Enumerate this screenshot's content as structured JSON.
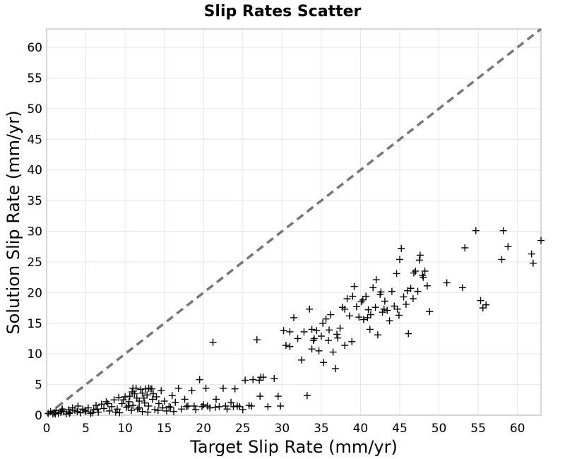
{
  "chart_data": {
    "type": "scatter",
    "title": "Slip Rates Scatter",
    "xlabel": "Target Slip Rate (mm/yr)",
    "ylabel": "Solution Slip Rate (mm/yr)",
    "xlim": [
      0,
      63
    ],
    "ylim": [
      0,
      63
    ],
    "xticks": [
      0,
      5,
      10,
      15,
      20,
      25,
      30,
      35,
      40,
      45,
      50,
      55,
      60
    ],
    "yticks": [
      0,
      5,
      10,
      15,
      20,
      25,
      30,
      35,
      40,
      45,
      50,
      55,
      60
    ],
    "tick_labels_x": [
      "0",
      "5",
      "10",
      "15",
      "20",
      "25",
      "30",
      "35",
      "40",
      "45",
      "50",
      "55",
      "60"
    ],
    "tick_labels_y": [
      "0",
      "5",
      "10",
      "15",
      "20",
      "25",
      "30",
      "35",
      "40",
      "45",
      "50",
      "55",
      "60"
    ],
    "grid": true,
    "marker": "plus",
    "marker_color": "#000000",
    "reference_line": {
      "style": "dashed",
      "color": "#777777",
      "from": [
        0,
        0
      ],
      "to": [
        63,
        63
      ]
    },
    "series": [
      {
        "points": [
          [
            0.2,
            0.3
          ],
          [
            0.5,
            0.6
          ],
          [
            0.8,
            0.2
          ],
          [
            1.0,
            0.4
          ],
          [
            1.2,
            0.8
          ],
          [
            1.5,
            0.3
          ],
          [
            1.8,
            0.5
          ],
          [
            2.0,
            1.0
          ],
          [
            2.2,
            0.6
          ],
          [
            2.5,
            0.2
          ],
          [
            2.8,
            0.9
          ],
          [
            3.0,
            0.5
          ],
          [
            3.3,
            1.2
          ],
          [
            3.6,
            0.8
          ],
          [
            4.0,
            1.5
          ],
          [
            4.3,
            0.4
          ],
          [
            4.6,
            1.0
          ],
          [
            5.0,
            0.6
          ],
          [
            5.3,
            1.2
          ],
          [
            5.6,
            0.3
          ],
          [
            6.0,
            0.9
          ],
          [
            6.3,
            1.6
          ],
          [
            6.6,
            0.5
          ],
          [
            7.0,
            1.8
          ],
          [
            7.3,
            1.1
          ],
          [
            7.6,
            2.2
          ],
          [
            8.0,
            0.7
          ],
          [
            8.3,
            1.4
          ],
          [
            8.6,
            2.5
          ],
          [
            9.0,
            1.0
          ],
          [
            9.3,
            0.4
          ],
          [
            9.6,
            1.9
          ],
          [
            10.0,
            3.0
          ],
          [
            10.2,
            1.3
          ],
          [
            10.5,
            2.2
          ],
          [
            10.8,
            0.8
          ],
          [
            11.0,
            1.6
          ],
          [
            11.2,
            3.5
          ],
          [
            11.5,
            2.8
          ],
          [
            11.8,
            1.2
          ],
          [
            12.0,
            4.2
          ],
          [
            12.2,
            0.6
          ],
          [
            12.5,
            2.0
          ],
          [
            12.8,
            3.3
          ],
          [
            13.0,
            1.5
          ],
          [
            13.2,
            4.3
          ],
          [
            13.5,
            2.6
          ],
          [
            13.8,
            0.9
          ],
          [
            14.0,
            3.0
          ],
          [
            14.3,
            1.9
          ],
          [
            14.6,
            4.0
          ],
          [
            15.0,
            2.3
          ],
          [
            15.3,
            0.7
          ],
          [
            15.6,
            1.4
          ],
          [
            16.0,
            3.2
          ],
          [
            16.4,
            2.1
          ],
          [
            16.8,
            4.4
          ],
          [
            17.2,
            1.0
          ],
          [
            17.6,
            2.6
          ],
          [
            18.0,
            1.5
          ],
          [
            18.5,
            4.0
          ],
          [
            19.0,
            0.9
          ],
          [
            19.5,
            5.8
          ],
          [
            20.0,
            1.7
          ],
          [
            20.3,
            4.4
          ],
          [
            20.8,
            1.2
          ],
          [
            21.2,
            11.9
          ],
          [
            21.6,
            2.6
          ],
          [
            22.0,
            1.4
          ],
          [
            22.5,
            4.4
          ],
          [
            23.0,
            1.0
          ],
          [
            23.5,
            2.1
          ],
          [
            24.0,
            4.3
          ],
          [
            24.3,
            1.5
          ],
          [
            25.0,
            0.9
          ],
          [
            25.3,
            5.7
          ],
          [
            25.8,
            1.6
          ],
          [
            26.3,
            5.8
          ],
          [
            26.8,
            12.3
          ],
          [
            27.2,
            3.1
          ],
          [
            27.6,
            6.2
          ],
          [
            28.2,
            1.4
          ],
          [
            29.0,
            6.0
          ],
          [
            29.5,
            3.1
          ],
          [
            29.8,
            1.5
          ],
          [
            30.2,
            13.8
          ],
          [
            30.5,
            11.4
          ],
          [
            31.0,
            11.2
          ],
          [
            31.5,
            15.9
          ],
          [
            32.0,
            12.5
          ],
          [
            32.5,
            9.0
          ],
          [
            32.8,
            13.6
          ],
          [
            33.2,
            3.2
          ],
          [
            33.5,
            17.3
          ],
          [
            33.8,
            14.0
          ],
          [
            34.1,
            12.5
          ],
          [
            34.4,
            13.8
          ],
          [
            34.7,
            10.5
          ],
          [
            35.0,
            12.9
          ],
          [
            35.3,
            8.6
          ],
          [
            35.6,
            15.7
          ],
          [
            35.9,
            12.2
          ],
          [
            36.2,
            16.4
          ],
          [
            36.5,
            10.3
          ],
          [
            36.8,
            7.6
          ],
          [
            37.1,
            12.6
          ],
          [
            37.4,
            14.2
          ],
          [
            37.7,
            17.6
          ],
          [
            38.0,
            11.4
          ],
          [
            38.3,
            19.0
          ],
          [
            38.6,
            16.2
          ],
          [
            38.9,
            12.0
          ],
          [
            39.2,
            21.0
          ],
          [
            39.5,
            17.7
          ],
          [
            39.8,
            16.0
          ],
          [
            40.1,
            18.5
          ],
          [
            40.4,
            15.6
          ],
          [
            40.7,
            19.4
          ],
          [
            41.0,
            17.2
          ],
          [
            41.3,
            16.4
          ],
          [
            41.6,
            20.8
          ],
          [
            41.9,
            17.6
          ],
          [
            42.2,
            13.1
          ],
          [
            42.5,
            19.7
          ],
          [
            42.8,
            16.8
          ],
          [
            43.1,
            18.6
          ],
          [
            43.4,
            17.1
          ],
          [
            43.7,
            15.4
          ],
          [
            44.0,
            20.2
          ],
          [
            44.3,
            17.8
          ],
          [
            44.6,
            23.1
          ],
          [
            44.9,
            16.3
          ],
          [
            45.2,
            27.2
          ],
          [
            45.5,
            19.3
          ],
          [
            45.8,
            18.1
          ],
          [
            46.1,
            13.3
          ],
          [
            46.4,
            20.7
          ],
          [
            46.7,
            19.0
          ],
          [
            47.0,
            23.5
          ],
          [
            47.3,
            20.2
          ],
          [
            47.6,
            26.1
          ],
          [
            47.9,
            22.8
          ],
          [
            48.2,
            23.5
          ],
          [
            48.5,
            21.1
          ],
          [
            48.8,
            16.9
          ],
          [
            51.0,
            21.6
          ],
          [
            53.0,
            20.8
          ],
          [
            53.3,
            27.3
          ],
          [
            54.7,
            30.1
          ],
          [
            55.3,
            18.7
          ],
          [
            55.6,
            17.5
          ],
          [
            56.0,
            18.0
          ],
          [
            58.0,
            25.4
          ],
          [
            58.2,
            30.1
          ],
          [
            58.8,
            27.5
          ],
          [
            61.8,
            26.3
          ],
          [
            62.0,
            24.8
          ],
          [
            63.0,
            28.5
          ],
          [
            42.0,
            22.1
          ],
          [
            40.3,
            18.8
          ],
          [
            41.2,
            14.0
          ],
          [
            37.0,
            13.2
          ],
          [
            34.0,
            12.2
          ],
          [
            36.0,
            13.9
          ],
          [
            39.0,
            19.4
          ],
          [
            45.0,
            25.4
          ],
          [
            47.5,
            25.3
          ],
          [
            44.7,
            17.3
          ],
          [
            43.0,
            17.3
          ],
          [
            46.0,
            20.3
          ],
          [
            38.0,
            17.3
          ],
          [
            35.2,
            15.0
          ],
          [
            33.8,
            10.8
          ],
          [
            31.0,
            13.6
          ],
          [
            42.6,
            20.1
          ],
          [
            40.9,
            15.9
          ],
          [
            46.8,
            23.2
          ],
          [
            48.0,
            22.5
          ],
          [
            11.0,
            4.4
          ],
          [
            11.4,
            4.4
          ],
          [
            12.6,
            4.3
          ],
          [
            13.0,
            4.4
          ],
          [
            13.4,
            4.3
          ],
          [
            12.2,
            3.6
          ],
          [
            10.6,
            3.1
          ],
          [
            9.8,
            2.5
          ],
          [
            11.6,
            1.0
          ],
          [
            12.9,
            0.5
          ],
          [
            14.8,
            1.2
          ],
          [
            8.8,
            0.5
          ],
          [
            7.8,
            1.9
          ],
          [
            9.2,
            2.9
          ],
          [
            10.4,
            1.5
          ],
          [
            13.6,
            3.5
          ],
          [
            12.4,
            2.8
          ],
          [
            11.8,
            2.3
          ],
          [
            10.9,
            3.8
          ],
          [
            14.2,
            0.8
          ],
          [
            15.8,
            1.3
          ],
          [
            16.2,
            0.6
          ],
          [
            17.8,
            1.4
          ],
          [
            18.8,
            1.5
          ],
          [
            19.8,
            1.4
          ],
          [
            20.5,
            1.5
          ],
          [
            21.5,
            1.3
          ],
          [
            22.8,
            1.5
          ],
          [
            23.8,
            1.4
          ],
          [
            24.6,
            1.4
          ],
          [
            26.1,
            1.5
          ],
          [
            27.1,
            5.7
          ],
          [
            27.3,
            6.2
          ],
          [
            6.5,
            1.0
          ],
          [
            5.8,
            0.4
          ],
          [
            4.9,
            0.8
          ],
          [
            3.9,
            0.6
          ],
          [
            2.9,
            0.3
          ],
          [
            1.9,
            0.7
          ],
          [
            1.1,
            0.2
          ]
        ]
      }
    ]
  }
}
